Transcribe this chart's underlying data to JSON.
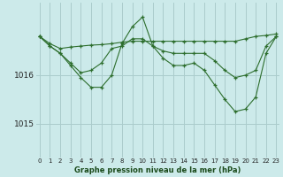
{
  "title": "Graphe pression niveau de la mer (hPa)",
  "background_color": "#cceaea",
  "grid_color": "#aacccc",
  "line_color": "#2d6e2d",
  "marker": "+",
  "x_labels": [
    "0",
    "1",
    "2",
    "3",
    "4",
    "5",
    "6",
    "7",
    "8",
    "9",
    "10",
    "11",
    "12",
    "13",
    "14",
    "15",
    "16",
    "17",
    "18",
    "19",
    "20",
    "21",
    "22",
    "23"
  ],
  "yticks": [
    1015,
    1016
  ],
  "ylim": [
    1014.3,
    1017.5
  ],
  "xlim": [
    -0.3,
    23.3
  ],
  "series": [
    [
      1016.8,
      1016.65,
      1016.55,
      1016.58,
      1016.6,
      1016.62,
      1016.63,
      1016.65,
      1016.68,
      1016.7,
      1016.7,
      1016.7,
      1016.7,
      1016.7,
      1016.7,
      1016.7,
      1016.7,
      1016.7,
      1016.7,
      1016.7,
      1016.75,
      1016.8,
      1016.82,
      1016.85
    ],
    [
      1016.8,
      1016.6,
      1016.45,
      1016.25,
      1016.05,
      1016.1,
      1016.25,
      1016.55,
      1016.6,
      1016.75,
      1016.75,
      1016.6,
      1016.5,
      1016.45,
      1016.45,
      1016.45,
      1016.45,
      1016.3,
      1016.1,
      1015.95,
      1016.0,
      1016.1,
      1016.6,
      1016.8
    ],
    [
      1016.8,
      1016.6,
      1016.45,
      1016.2,
      1015.95,
      1015.75,
      1015.75,
      1016.0,
      1016.65,
      1017.0,
      1017.2,
      1016.6,
      1016.35,
      1016.2,
      1016.2,
      1016.25,
      1016.1,
      1015.8,
      1015.5,
      1015.25,
      1015.3,
      1015.55,
      1016.45,
      1016.8
    ]
  ]
}
